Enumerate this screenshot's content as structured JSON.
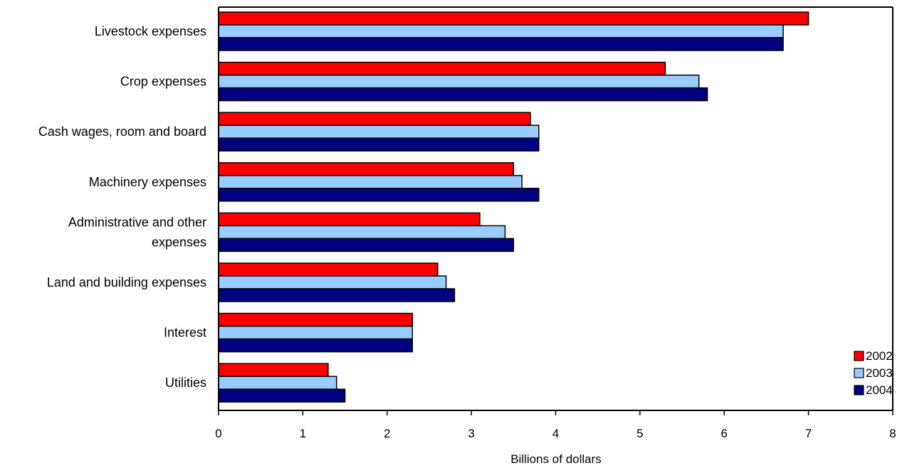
{
  "chart_data": {
    "type": "bar",
    "orientation": "horizontal",
    "categories": [
      [
        "Livestock expenses"
      ],
      [
        "Crop expenses"
      ],
      [
        "Cash wages, room and board"
      ],
      [
        "Machinery expenses"
      ],
      [
        "Administrative and other",
        "expenses"
      ],
      [
        "Land and building expenses"
      ],
      [
        "Interest"
      ],
      [
        "Utilities"
      ]
    ],
    "series": [
      {
        "name": "2002",
        "color": "#ff0000",
        "values": [
          7.0,
          5.3,
          3.7,
          3.5,
          3.1,
          2.6,
          2.3,
          1.3
        ]
      },
      {
        "name": "2003",
        "color": "#99ccff",
        "values": [
          6.7,
          5.7,
          3.8,
          3.6,
          3.4,
          2.7,
          2.3,
          1.4
        ]
      },
      {
        "name": "2004",
        "color": "#000080",
        "values": [
          6.7,
          5.8,
          3.8,
          3.8,
          3.5,
          2.8,
          2.3,
          1.5
        ]
      }
    ],
    "xlabel": "Billions of dollars",
    "xlim": [
      0,
      8
    ],
    "xticks": [
      "0",
      "1",
      "2",
      "3",
      "4",
      "5",
      "6",
      "7",
      "8"
    ],
    "grid": false,
    "legend_position": "bottom-right"
  }
}
